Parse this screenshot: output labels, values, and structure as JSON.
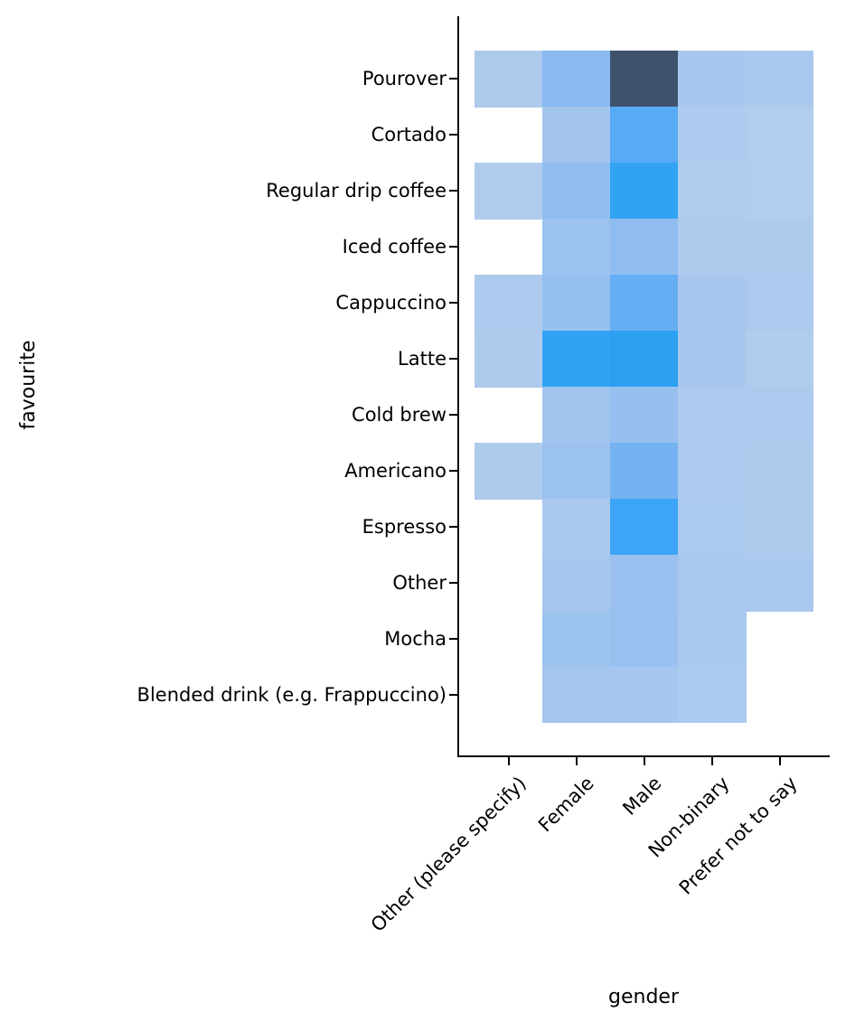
{
  "figure": {
    "background": "#ffffff",
    "axis_color": "#000000"
  },
  "chart_data": {
    "type": "heatmap",
    "title": "",
    "xlabel": "gender",
    "ylabel": "favourite",
    "x_categories": [
      "Other (please specify)",
      "Female",
      "Male",
      "Non-binary",
      "Prefer not to say"
    ],
    "y_categories": [
      "Pourover",
      "Cortado",
      "Regular drip coffee",
      "Iced coffee",
      "Cappuccino",
      "Latte",
      "Cold brew",
      "Americano",
      "Espresso",
      "Other",
      "Mocha",
      "Blended drink (e.g. Frappuccino)"
    ],
    "cell_colors": [
      [
        "#adc9ec",
        "#88b9f1",
        "#3e526c",
        "#a9c7ee",
        "#abc9ee"
      ],
      [
        null,
        "#a3c4ec",
        "#57aaf4",
        "#aecaee",
        "#b2cdee"
      ],
      [
        "#b0cbee",
        "#8fbdef",
        "#32a3f3",
        "#b0ccee",
        "#b3cdee"
      ],
      [
        null,
        "#9cc3f0",
        "#90bdf0",
        "#aecbee",
        "#aecbee"
      ],
      [
        "#adc9ed",
        "#95c0f0",
        "#65aef3",
        "#a9c7ee",
        "#adcaee"
      ],
      [
        "#aecbed",
        "#31a3f5",
        "#2da0f1",
        "#a6c6ee",
        "#b1cdee"
      ],
      [
        null,
        "#a2c5ee",
        "#97c0f0",
        "#adcaee",
        "#adcaee"
      ],
      [
        "#aecaed",
        "#9cc2ef",
        "#74b2f2",
        "#adcaee",
        "#aecbee"
      ],
      [
        null,
        "#abc8ed",
        "#3da5f7",
        "#accaee",
        "#aecbee"
      ],
      [
        null,
        "#a6c7ee",
        "#9ac1f0",
        "#aac8ee",
        "#abc9ee"
      ],
      [
        null,
        "#9dc3ef",
        "#99c1f0",
        "#abc9ee",
        null
      ],
      [
        null,
        "#a4c6ef",
        "#a4c6ef",
        "#adcbee",
        null
      ]
    ],
    "color_semantics": "darker blue = higher count; white (null) = no observations",
    "x_tick_rotation_deg": 45,
    "grid": false,
    "legend_position": "none"
  }
}
